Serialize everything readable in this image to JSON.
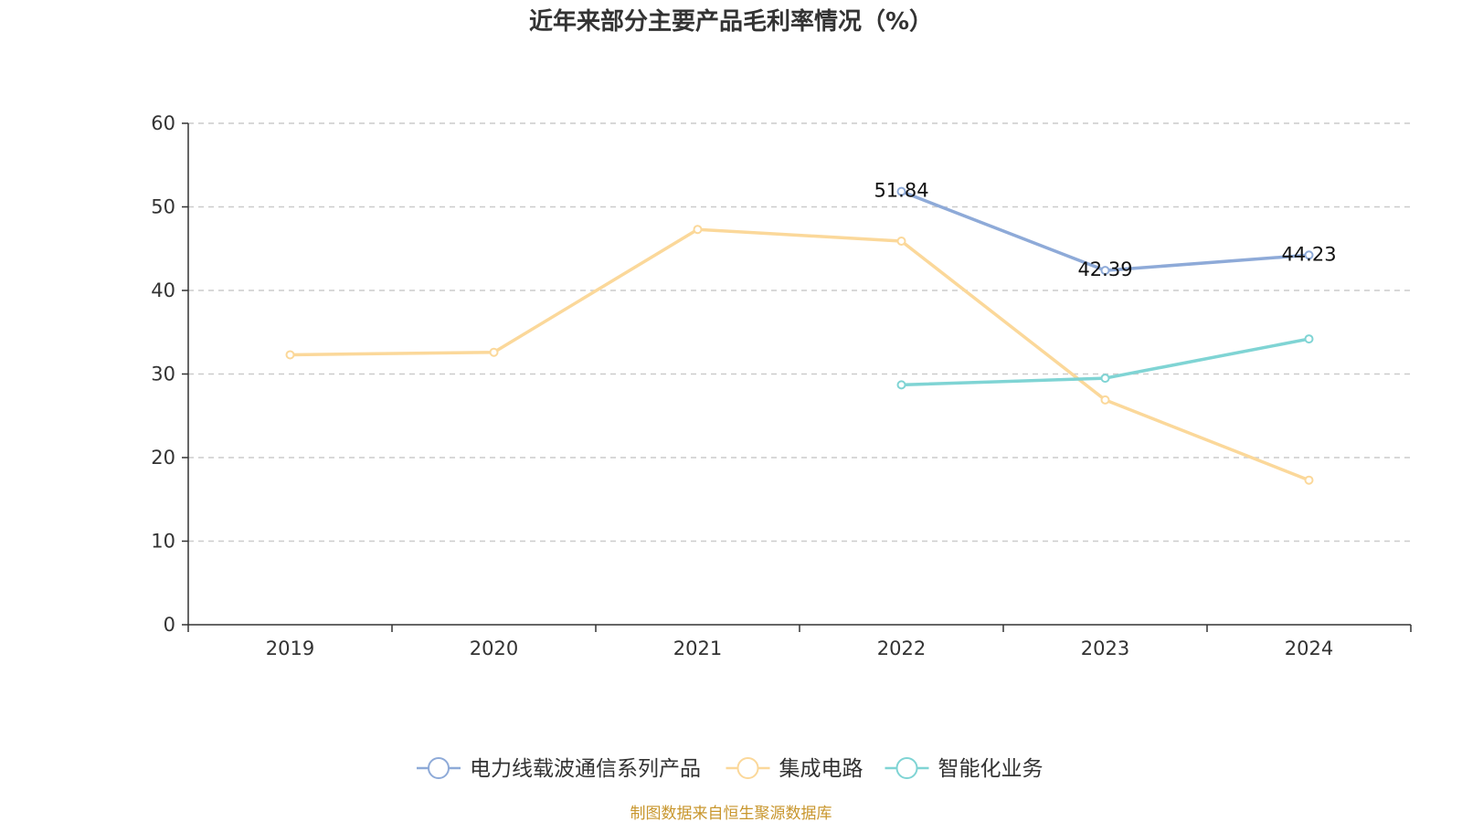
{
  "chart_data": {
    "type": "line",
    "title": "近年来部分主要产品毛利率情况（%）",
    "categories": [
      "2019",
      "2020",
      "2021",
      "2022",
      "2023",
      "2024"
    ],
    "ylim": [
      0,
      60
    ],
    "yticks": [
      0,
      10,
      20,
      30,
      40,
      50,
      60
    ],
    "grid": true,
    "legend_position": "bottom",
    "series": [
      {
        "name": "电力线载波通信系列产品",
        "color": "#8eaad8",
        "values": [
          null,
          null,
          null,
          51.84,
          42.39,
          44.23
        ],
        "labels": [
          "",
          "",
          "",
          "51.84",
          "42.39",
          "44.23"
        ]
      },
      {
        "name": "集成电路",
        "color": "#fbd89a",
        "values": [
          32.3,
          32.6,
          47.3,
          45.9,
          26.9,
          17.3
        ],
        "labels": [
          "",
          "",
          "",
          "",
          "",
          ""
        ]
      },
      {
        "name": "智能化业务",
        "color": "#7fd4d4",
        "values": [
          null,
          null,
          null,
          28.7,
          29.5,
          34.2
        ],
        "labels": [
          "",
          "",
          "",
          "",
          "",
          ""
        ]
      }
    ]
  },
  "footer": {
    "source": "制图数据来自恒生聚源数据库",
    "source_color": "#c8962d"
  }
}
